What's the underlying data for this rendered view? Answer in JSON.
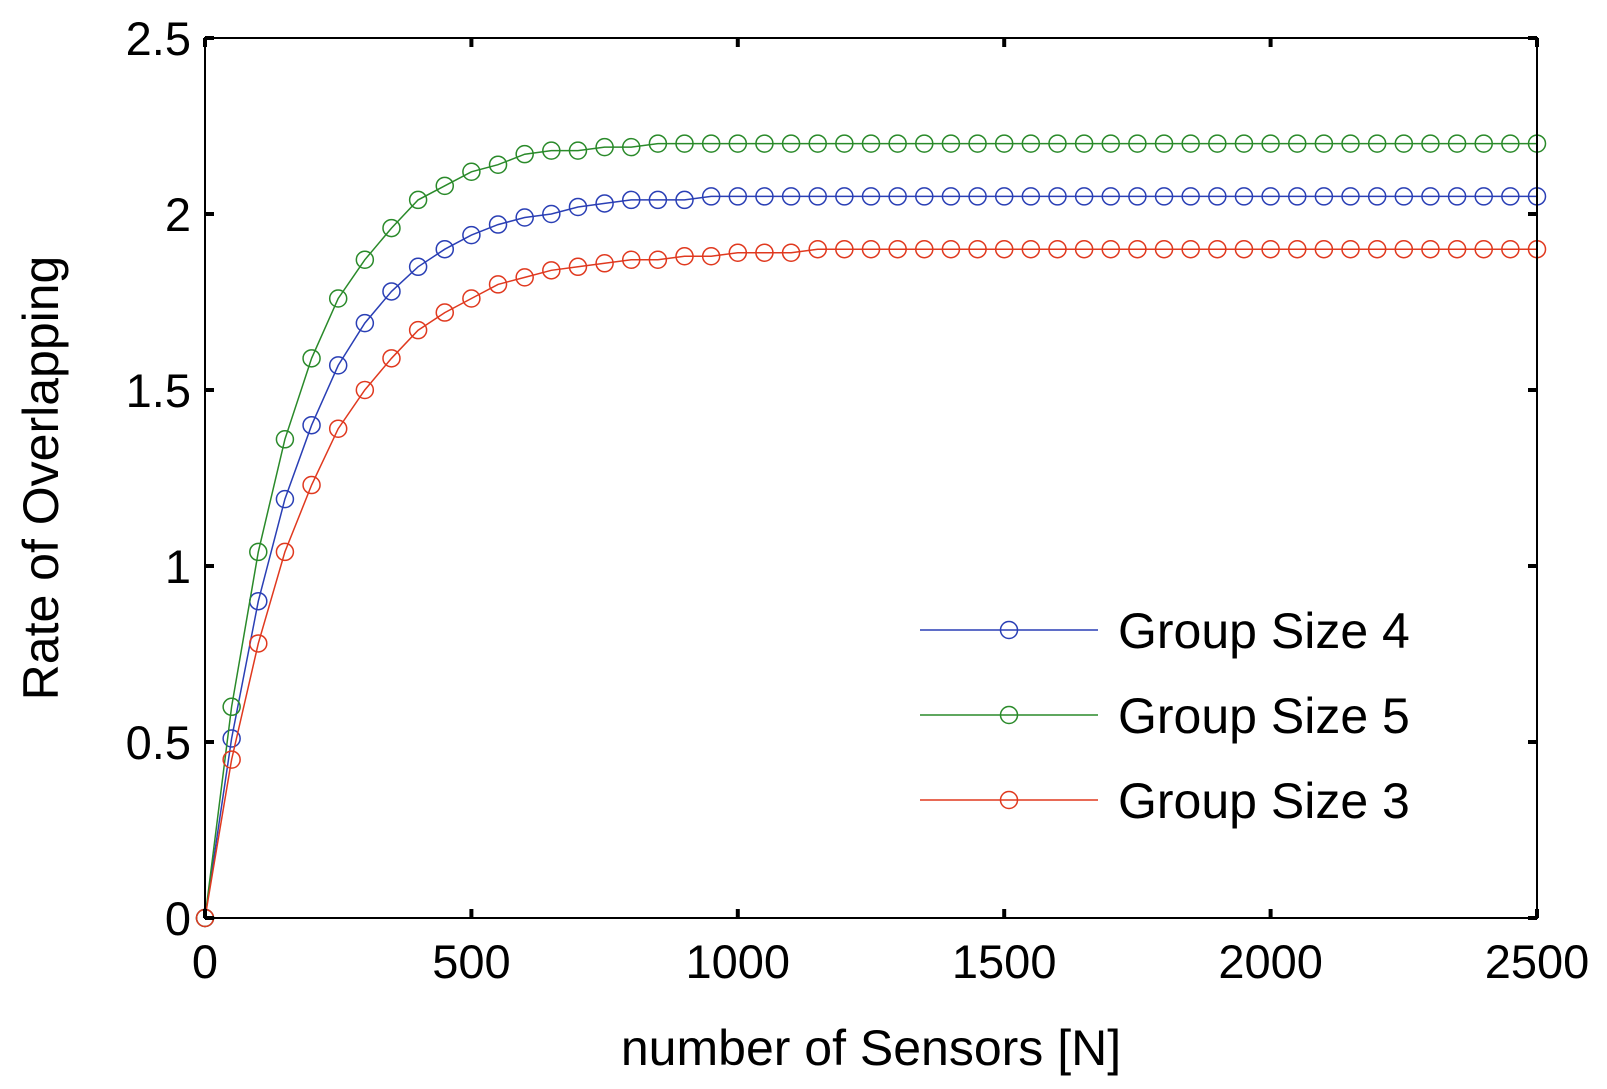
{
  "chart_data": {
    "type": "line",
    "title": "",
    "xlabel": "number of Sensors [N]",
    "ylabel": "Rate of Overlapping",
    "xlim": [
      0,
      2500
    ],
    "ylim": [
      0,
      2.5
    ],
    "xticks": [
      0,
      500,
      1000,
      1500,
      2000,
      2500
    ],
    "yticks": [
      0,
      0.5,
      1,
      1.5,
      2,
      2.5
    ],
    "xtick_labels": [
      "0",
      "500",
      "1000",
      "1500",
      "2000",
      "2500"
    ],
    "ytick_labels": [
      "0",
      "0.5",
      "1",
      "1.5",
      "2",
      "2.5"
    ],
    "grid": false,
    "legend_position": "bottom-right",
    "marker": "circle",
    "x": [
      0,
      50,
      100,
      150,
      200,
      250,
      300,
      350,
      400,
      450,
      500,
      550,
      600,
      650,
      700,
      750,
      800,
      850,
      900,
      950,
      1000,
      1050,
      1100,
      1150,
      1200,
      1250,
      1300,
      1350,
      1400,
      1450,
      1500,
      1550,
      1600,
      1650,
      1700,
      1750,
      1800,
      1850,
      1900,
      1950,
      2000,
      2050,
      2100,
      2150,
      2200,
      2250,
      2300,
      2350,
      2400,
      2450,
      2500
    ],
    "series": [
      {
        "name": "Group Size 4",
        "color": "#2a3fb5",
        "values": [
          0,
          0.51,
          0.9,
          1.19,
          1.4,
          1.57,
          1.69,
          1.78,
          1.85,
          1.9,
          1.94,
          1.97,
          1.99,
          2.0,
          2.02,
          2.03,
          2.04,
          2.04,
          2.04,
          2.05,
          2.05,
          2.05,
          2.05,
          2.05,
          2.05,
          2.05,
          2.05,
          2.05,
          2.05,
          2.05,
          2.05,
          2.05,
          2.05,
          2.05,
          2.05,
          2.05,
          2.05,
          2.05,
          2.05,
          2.05,
          2.05,
          2.05,
          2.05,
          2.05,
          2.05,
          2.05,
          2.05,
          2.05,
          2.05,
          2.05,
          2.05
        ]
      },
      {
        "name": "Group Size 5",
        "color": "#2a8a2a",
        "values": [
          0,
          0.6,
          1.04,
          1.36,
          1.59,
          1.76,
          1.87,
          1.96,
          2.04,
          2.08,
          2.12,
          2.14,
          2.17,
          2.18,
          2.18,
          2.19,
          2.19,
          2.2,
          2.2,
          2.2,
          2.2,
          2.2,
          2.2,
          2.2,
          2.2,
          2.2,
          2.2,
          2.2,
          2.2,
          2.2,
          2.2,
          2.2,
          2.2,
          2.2,
          2.2,
          2.2,
          2.2,
          2.2,
          2.2,
          2.2,
          2.2,
          2.2,
          2.2,
          2.2,
          2.2,
          2.2,
          2.2,
          2.2,
          2.2,
          2.2,
          2.2
        ]
      },
      {
        "name": "Group Size 3",
        "color": "#e0391f",
        "values": [
          0,
          0.45,
          0.78,
          1.04,
          1.23,
          1.39,
          1.5,
          1.59,
          1.67,
          1.72,
          1.76,
          1.8,
          1.82,
          1.84,
          1.85,
          1.86,
          1.87,
          1.87,
          1.88,
          1.88,
          1.89,
          1.89,
          1.89,
          1.9,
          1.9,
          1.9,
          1.9,
          1.9,
          1.9,
          1.9,
          1.9,
          1.9,
          1.9,
          1.9,
          1.9,
          1.9,
          1.9,
          1.9,
          1.9,
          1.9,
          1.9,
          1.9,
          1.9,
          1.9,
          1.9,
          1.9,
          1.9,
          1.9,
          1.9,
          1.9,
          1.9
        ]
      }
    ]
  }
}
